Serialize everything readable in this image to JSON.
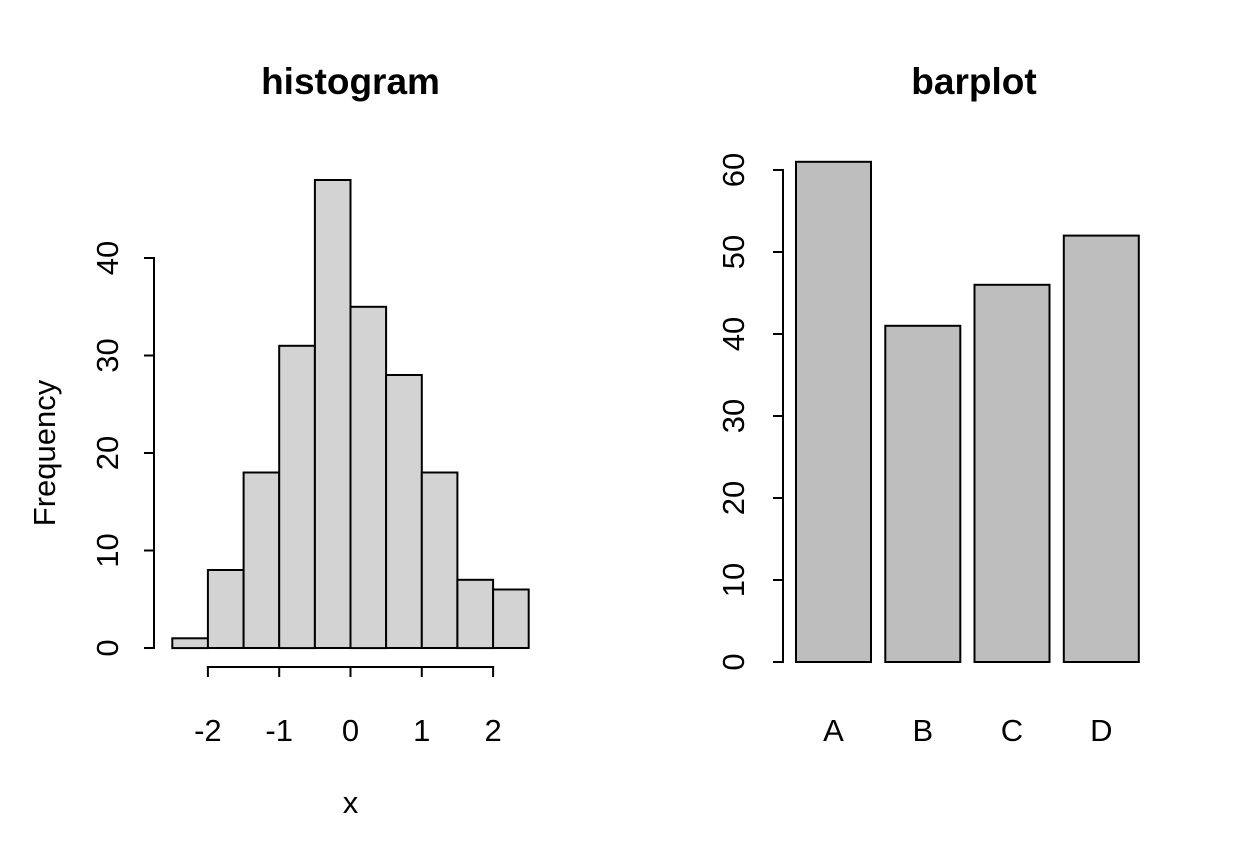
{
  "figure": {
    "background": "#ffffff",
    "foreground": "#000000"
  },
  "chart_data": [
    {
      "type": "bar",
      "subtype": "histogram",
      "title": "histogram",
      "xlabel": "x",
      "ylabel": "Frequency",
      "bin_start": -2.5,
      "bin_width": 0.5,
      "bin_edges": [
        -2.5,
        -2,
        -1.5,
        -1,
        -0.5,
        0,
        0.5,
        1,
        1.5,
        2,
        2.5
      ],
      "counts": [
        1,
        8,
        18,
        31,
        48,
        35,
        28,
        18,
        7,
        6
      ],
      "x_ticks": [
        -2,
        -1,
        0,
        1,
        2
      ],
      "x_tick_labels": [
        "-2",
        "-1",
        "0",
        "1",
        "2"
      ],
      "y_ticks": [
        0,
        10,
        20,
        30,
        40
      ],
      "y_tick_labels": [
        "0",
        "10",
        "20",
        "30",
        "40"
      ],
      "xlim": [
        -2.5,
        2.5
      ],
      "ylim": [
        0,
        48
      ],
      "grid": false,
      "legend": null,
      "bar_fill": "#D3D3D3",
      "bar_stroke": "#000000"
    },
    {
      "type": "bar",
      "subtype": "barplot",
      "title": "barplot",
      "xlabel": "",
      "ylabel": "",
      "categories": [
        "A",
        "B",
        "C",
        "D"
      ],
      "values": [
        61,
        41,
        46,
        52
      ],
      "y_ticks": [
        0,
        10,
        20,
        30,
        40,
        50,
        60
      ],
      "y_tick_labels": [
        "0",
        "10",
        "20",
        "30",
        "40",
        "50",
        "60"
      ],
      "ylim": [
        0,
        61
      ],
      "grid": false,
      "legend": null,
      "bar_fill": "#BEBEBE",
      "bar_stroke": "#000000"
    }
  ]
}
